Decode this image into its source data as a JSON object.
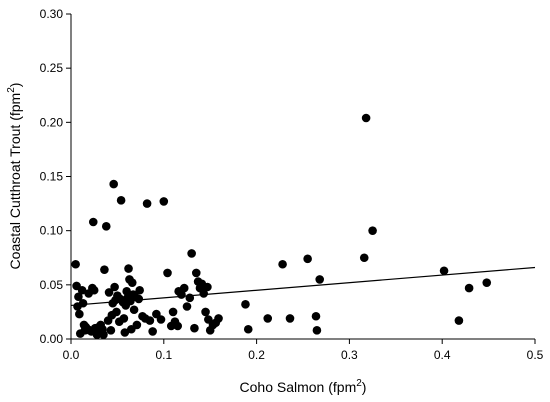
{
  "chart_data": {
    "type": "scatter",
    "title": "",
    "xlabel": "Coho Salmon (fpm",
    "xlabel_sup": "2",
    "xlabel_end": ")",
    "ylabel": "Coastal Cutthroat Trout (fpm",
    "ylabel_sup": "2",
    "ylabel_end": ")",
    "xlim": [
      0,
      0.5
    ],
    "ylim": [
      0,
      0.3
    ],
    "xticks": [
      "0.0",
      "0.1",
      "0.2",
      "0.3",
      "0.4",
      "0.5"
    ],
    "yticks": [
      "0.00",
      "0.05",
      "0.10",
      "0.15",
      "0.20",
      "0.25",
      "0.30"
    ],
    "grid": false,
    "legend": "none",
    "marker_color": "#000000",
    "trendline": {
      "x": [
        0.0,
        0.5
      ],
      "y": [
        0.031,
        0.066
      ]
    },
    "points": [
      [
        0.005,
        0.069
      ],
      [
        0.006,
        0.049
      ],
      [
        0.007,
        0.03
      ],
      [
        0.008,
        0.039
      ],
      [
        0.009,
        0.023
      ],
      [
        0.01,
        0.005
      ],
      [
        0.012,
        0.045
      ],
      [
        0.013,
        0.033
      ],
      [
        0.014,
        0.013
      ],
      [
        0.015,
        0.008
      ],
      [
        0.016,
        0.011
      ],
      [
        0.018,
        0.009
      ],
      [
        0.019,
        0.042
      ],
      [
        0.02,
        0.008
      ],
      [
        0.022,
        0.007
      ],
      [
        0.023,
        0.047
      ],
      [
        0.024,
        0.108
      ],
      [
        0.025,
        0.045
      ],
      [
        0.026,
        0.01
      ],
      [
        0.027,
        0.008
      ],
      [
        0.028,
        0.004
      ],
      [
        0.029,
        0.009
      ],
      [
        0.03,
        0.011
      ],
      [
        0.032,
        0.013
      ],
      [
        0.034,
        0.009
      ],
      [
        0.035,
        0.004
      ],
      [
        0.036,
        0.064
      ],
      [
        0.038,
        0.104
      ],
      [
        0.04,
        0.017
      ],
      [
        0.041,
        0.043
      ],
      [
        0.043,
        0.008
      ],
      [
        0.044,
        0.022
      ],
      [
        0.045,
        0.033
      ],
      [
        0.046,
        0.143
      ],
      [
        0.047,
        0.048
      ],
      [
        0.048,
        0.036
      ],
      [
        0.049,
        0.025
      ],
      [
        0.05,
        0.04
      ],
      [
        0.052,
        0.016
      ],
      [
        0.053,
        0.037
      ],
      [
        0.054,
        0.128
      ],
      [
        0.056,
        0.034
      ],
      [
        0.057,
        0.019
      ],
      [
        0.058,
        0.006
      ],
      [
        0.059,
        0.031
      ],
      [
        0.06,
        0.044
      ],
      [
        0.061,
        0.038
      ],
      [
        0.062,
        0.065
      ],
      [
        0.063,
        0.055
      ],
      [
        0.064,
        0.035
      ],
      [
        0.065,
        0.009
      ],
      [
        0.066,
        0.052
      ],
      [
        0.067,
        0.041
      ],
      [
        0.068,
        0.027
      ],
      [
        0.069,
        0.039
      ],
      [
        0.071,
        0.013
      ],
      [
        0.073,
        0.037
      ],
      [
        0.074,
        0.045
      ],
      [
        0.077,
        0.021
      ],
      [
        0.08,
        0.019
      ],
      [
        0.082,
        0.125
      ],
      [
        0.085,
        0.017
      ],
      [
        0.088,
        0.007
      ],
      [
        0.092,
        0.023
      ],
      [
        0.097,
        0.018
      ],
      [
        0.1,
        0.127
      ],
      [
        0.104,
        0.061
      ],
      [
        0.108,
        0.012
      ],
      [
        0.11,
        0.025
      ],
      [
        0.112,
        0.016
      ],
      [
        0.115,
        0.012
      ],
      [
        0.116,
        0.044
      ],
      [
        0.119,
        0.041
      ],
      [
        0.122,
        0.047
      ],
      [
        0.125,
        0.03
      ],
      [
        0.128,
        0.038
      ],
      [
        0.13,
        0.079
      ],
      [
        0.133,
        0.01
      ],
      [
        0.135,
        0.061
      ],
      [
        0.137,
        0.053
      ],
      [
        0.139,
        0.047
      ],
      [
        0.141,
        0.051
      ],
      [
        0.143,
        0.042
      ],
      [
        0.145,
        0.025
      ],
      [
        0.147,
        0.048
      ],
      [
        0.148,
        0.018
      ],
      [
        0.15,
        0.008
      ],
      [
        0.153,
        0.013
      ],
      [
        0.156,
        0.015
      ],
      [
        0.159,
        0.019
      ],
      [
        0.188,
        0.032
      ],
      [
        0.191,
        0.009
      ],
      [
        0.212,
        0.019
      ],
      [
        0.228,
        0.069
      ],
      [
        0.236,
        0.019
      ],
      [
        0.255,
        0.074
      ],
      [
        0.264,
        0.021
      ],
      [
        0.265,
        0.008
      ],
      [
        0.268,
        0.055
      ],
      [
        0.316,
        0.075
      ],
      [
        0.318,
        0.204
      ],
      [
        0.325,
        0.1
      ],
      [
        0.402,
        0.063
      ],
      [
        0.418,
        0.017
      ],
      [
        0.429,
        0.047
      ],
      [
        0.448,
        0.052
      ]
    ]
  }
}
